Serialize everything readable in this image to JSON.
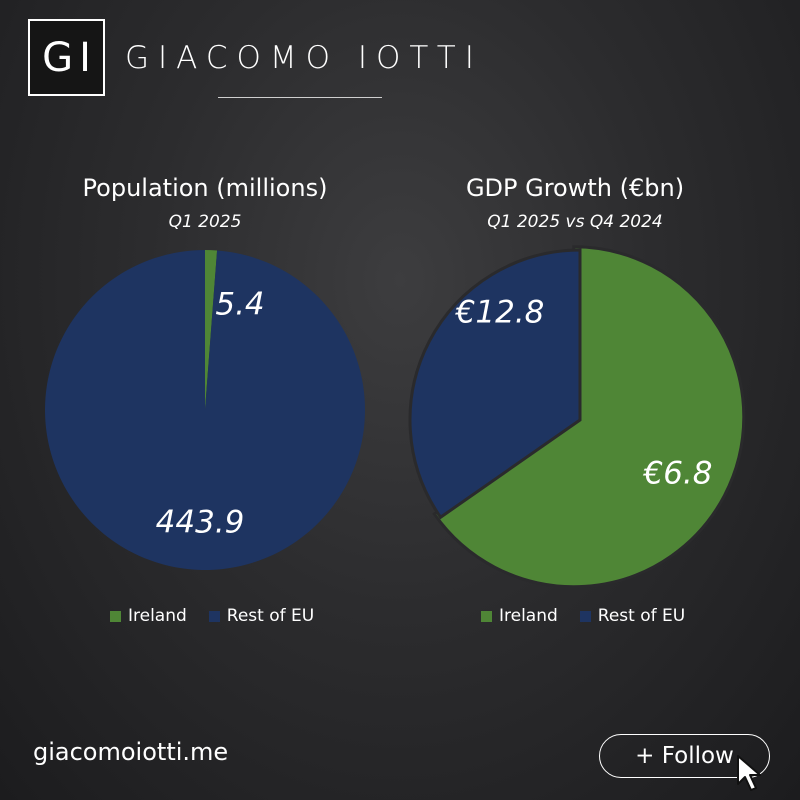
{
  "brand": {
    "logo": "GI",
    "name": "GIACOMO IOTTI"
  },
  "footer": {
    "website": "giacomoiotti.me",
    "follow_label": "+ Follow"
  },
  "colors": {
    "ireland": "#4f8636",
    "rest_of_eu": "#1e3461",
    "background": "#2c2c2e",
    "text": "#ffffff"
  },
  "icons": {
    "cursor": "mouse-pointer-icon"
  },
  "chart_data": [
    {
      "type": "pie",
      "title": "Population (millions)",
      "subtitle": "Q1 2025",
      "categories": [
        "Ireland",
        "Rest of EU"
      ],
      "values": [
        5.4,
        443.9
      ],
      "data_labels": [
        "5.4",
        "443.9"
      ],
      "legend": [
        "Ireland",
        "Rest of EU"
      ],
      "legend_position": "bottom"
    },
    {
      "type": "pie",
      "title": "GDP Growth (€bn)",
      "subtitle": "Q1 2025 vs Q4 2024",
      "categories": [
        "Ireland",
        "Rest of EU"
      ],
      "values": [
        12.8,
        6.8
      ],
      "data_labels": [
        "€12.8",
        "€6.8"
      ],
      "legend": [
        "Ireland",
        "Rest of EU"
      ],
      "legend_position": "bottom"
    }
  ]
}
